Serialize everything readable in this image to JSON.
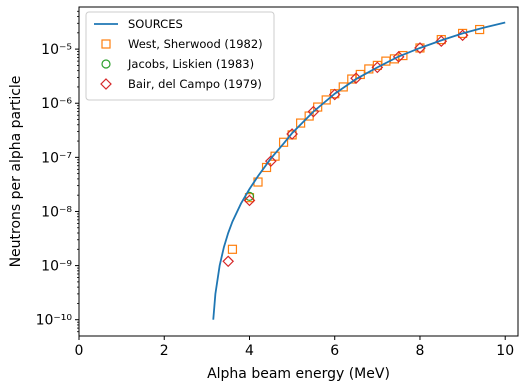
{
  "chart_data": {
    "type": "scatter",
    "xlabel": "Alpha beam energy (MeV)",
    "ylabel": "Neutrons per alpha particle",
    "xlim": [
      0,
      10.3
    ],
    "ylim": [
      5e-11,
      6e-05
    ],
    "yscale": "log",
    "x_ticks": [
      0,
      2,
      4,
      6,
      8,
      10
    ],
    "x_tick_labels": [
      "0",
      "2",
      "4",
      "6",
      "8",
      "10"
    ],
    "y_ticks": [
      1e-10,
      1e-09,
      1e-08,
      1e-07,
      1e-06,
      1e-05
    ],
    "y_tick_labels": [
      "10⁻¹⁰",
      "10⁻⁹",
      "10⁻⁸",
      "10⁻⁷",
      "10⁻⁶",
      "10⁻⁵"
    ],
    "grid": false,
    "legend_position": "top-left",
    "series": [
      {
        "name": "SOURCES",
        "kind": "line",
        "color": "#1f77b4",
        "x": [
          3.15,
          3.2,
          3.3,
          3.4,
          3.5,
          3.6,
          3.8,
          4.0,
          4.2,
          4.5,
          4.8,
          5.0,
          5.5,
          6.0,
          6.5,
          7.0,
          7.5,
          8.0,
          8.5,
          9.0,
          9.5,
          10.0
        ],
        "y": [
          1e-10,
          3e-10,
          1e-09,
          2.2e-09,
          4e-09,
          6.5e-09,
          1.4e-08,
          2.6e-08,
          4.5e-08,
          9.5e-08,
          1.8e-07,
          2.8e-07,
          7e-07,
          1.5e-06,
          2.8e-06,
          4.6e-06,
          7.3e-06,
          1.05e-05,
          1.45e-05,
          1.95e-05,
          2.5e-05,
          3.1e-05
        ]
      },
      {
        "name": "West, Sherwood (1982)",
        "kind": "marker",
        "marker": "square",
        "color": "#ff7f0e",
        "x": [
          3.6,
          4.0,
          4.2,
          4.4,
          4.6,
          4.8,
          5.0,
          5.2,
          5.4,
          5.6,
          5.8,
          6.0,
          6.2,
          6.4,
          6.6,
          6.8,
          7.0,
          7.2,
          7.4,
          7.6,
          8.0,
          8.5,
          9.0,
          9.4
        ],
        "y": [
          2e-09,
          1.8e-08,
          3.5e-08,
          6.5e-08,
          1.05e-07,
          1.9e-07,
          2.6e-07,
          4.3e-07,
          5.8e-07,
          8.5e-07,
          1.15e-06,
          1.5e-06,
          2e-06,
          2.8e-06,
          3.4e-06,
          4.3e-06,
          5e-06,
          6e-06,
          6.6e-06,
          7.6e-06,
          1.05e-05,
          1.5e-05,
          1.95e-05,
          2.3e-05
        ]
      },
      {
        "name": "Jacobs, Liskien (1983)",
        "kind": "marker",
        "marker": "circle",
        "color": "#2ca02c",
        "x": [
          4.0
        ],
        "y": [
          1.9e-08
        ]
      },
      {
        "name": "Bair, del Campo (1979)",
        "kind": "marker",
        "marker": "diamond",
        "color": "#d62728",
        "x": [
          3.5,
          4.0,
          4.5,
          5.0,
          5.5,
          6.0,
          6.5,
          7.0,
          7.5,
          8.0,
          8.5,
          9.0
        ],
        "y": [
          1.2e-09,
          1.6e-08,
          8.5e-08,
          2.7e-07,
          7e-07,
          1.45e-06,
          2.9e-06,
          4.6e-06,
          7.2e-06,
          1.05e-05,
          1.4e-05,
          1.8e-05
        ]
      }
    ]
  }
}
